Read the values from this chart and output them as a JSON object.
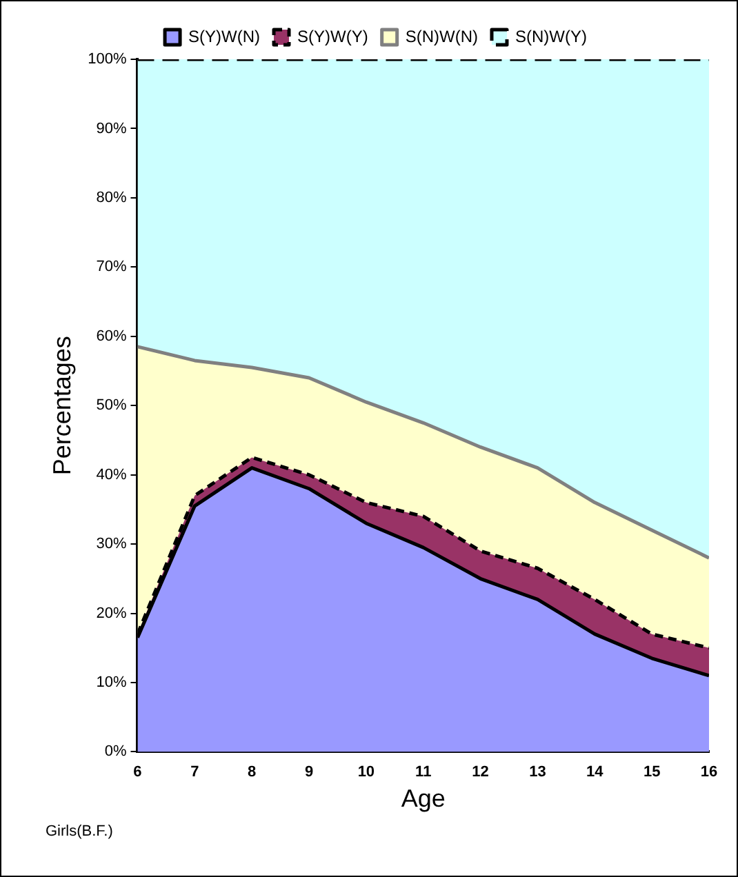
{
  "chart_data": {
    "type": "area",
    "stacked": true,
    "xlabel": "Age",
    "ylabel": "Percentages",
    "x": [
      6,
      7,
      8,
      9,
      10,
      11,
      12,
      13,
      14,
      15,
      16
    ],
    "xlim": [
      6,
      16
    ],
    "xticks": [
      6,
      7,
      8,
      9,
      10,
      11,
      12,
      13,
      14,
      15,
      16
    ],
    "ylim": [
      0,
      100
    ],
    "yticks": [
      {
        "value": 0,
        "label": "0%"
      },
      {
        "value": 10,
        "label": "10%"
      },
      {
        "value": 20,
        "label": "20%"
      },
      {
        "value": 30,
        "label": "30%"
      },
      {
        "value": 40,
        "label": "40%"
      },
      {
        "value": 50,
        "label": "50%"
      },
      {
        "value": 60,
        "label": "60%"
      },
      {
        "value": 70,
        "label": "70%"
      },
      {
        "value": 80,
        "label": "80%"
      },
      {
        "value": 90,
        "label": "90%"
      },
      {
        "value": 100,
        "label": "100%"
      }
    ],
    "series": [
      {
        "name": "S(Y)W(N)",
        "color": "#9999ff",
        "values": [
          16.5,
          35.5,
          41,
          38,
          33,
          29.5,
          25,
          22,
          17,
          13.5,
          11
        ]
      },
      {
        "name": "S(Y)W(Y)",
        "color": "#993366",
        "values": [
          0.5,
          1.5,
          1.5,
          2,
          3,
          4.5,
          4,
          4.5,
          5,
          3.5,
          4
        ]
      },
      {
        "name": "S(N)W(N)",
        "color": "#ffffcc",
        "values": [
          41.5,
          19.5,
          13,
          14,
          14.5,
          13.5,
          15,
          14.5,
          14,
          15,
          13
        ]
      },
      {
        "name": "S(N)W(Y)",
        "color": "#ccffff",
        "values": [
          41.5,
          43.5,
          44.5,
          46,
          49.5,
          52.5,
          56,
          59,
          64,
          68,
          72
        ]
      }
    ],
    "grid": false,
    "legend": "top",
    "annotations": [
      "Girls(B.F.)"
    ]
  }
}
